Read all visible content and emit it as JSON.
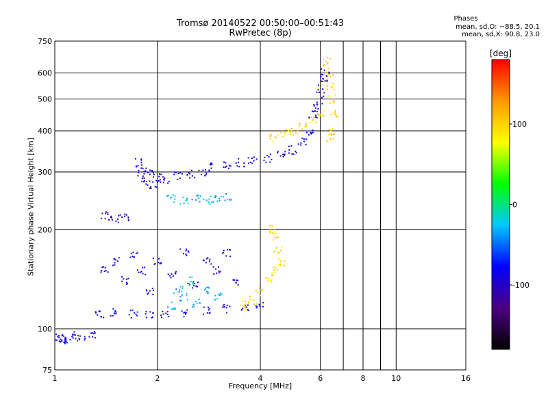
{
  "header": {
    "title_line1": "Tromsø 20140522 00:50:00–00:51:43",
    "title_line2": "RwPretec (8p)"
  },
  "stats": {
    "heading": "Phases",
    "line_o": "mean, sd,O: −88.5, 20.1",
    "line_x": "mean, sd,X:  90.8, 23.0"
  },
  "chart_data": {
    "type": "scatter",
    "xlabel": "Frequency [MHz]",
    "ylabel": "Stationary phase Virtual Height [km]",
    "xscale": "log",
    "yscale": "log",
    "xlim": [
      1,
      16
    ],
    "ylim": [
      75,
      750
    ],
    "x_ticks": [
      1,
      2,
      4,
      6,
      8,
      10,
      16
    ],
    "x_minor_gridlines": [
      7,
      9
    ],
    "y_ticks": [
      75,
      100,
      200,
      300,
      400,
      500,
      600,
      750
    ],
    "grid": true,
    "colorbar": {
      "label": "[deg]",
      "range": [
        -180,
        180
      ],
      "ticks": [
        100,
        0,
        -100
      ],
      "colormap": [
        "#000000",
        "#4b0082",
        "#0000ff",
        "#00c8ff",
        "#00ff00",
        "#ffff00",
        "#ff9900",
        "#ff0000"
      ]
    },
    "clusters": [
      {
        "name": "",
        "points": [
          [
            1.03,
            94
          ],
          [
            1.05,
            92
          ],
          [
            1.08,
            93
          ],
          [
            1.12,
            95
          ],
          [
            1.2,
            93
          ],
          [
            1.3,
            96
          ],
          [
            1.0,
            93
          ]
        ],
        "phase": -90
      },
      {
        "name": "",
        "points": [
          [
            1.35,
            110
          ],
          [
            1.5,
            112
          ],
          [
            1.7,
            111
          ],
          [
            1.9,
            110
          ],
          [
            2.1,
            111
          ],
          [
            2.4,
            112
          ],
          [
            2.8,
            113
          ],
          [
            3.2,
            115
          ],
          [
            3.6,
            117
          ],
          [
            4.0,
            119
          ]
        ],
        "phase": -85
      },
      {
        "name": "",
        "points": [
          [
            1.4,
            150
          ],
          [
            1.5,
            160
          ],
          [
            1.6,
            140
          ],
          [
            1.7,
            170
          ],
          [
            1.8,
            150
          ],
          [
            1.9,
            130
          ],
          [
            2.0,
            160
          ],
          [
            2.2,
            145
          ],
          [
            2.4,
            170
          ],
          [
            2.6,
            135
          ],
          [
            2.8,
            160
          ],
          [
            3.0,
            150
          ],
          [
            3.2,
            170
          ],
          [
            3.4,
            140
          ]
        ],
        "phase": -95
      },
      {
        "name": "",
        "points": [
          [
            2.2,
            118
          ],
          [
            2.4,
            125
          ],
          [
            2.6,
            120
          ],
          [
            2.8,
            130
          ],
          [
            3.0,
            125
          ],
          [
            2.5,
            140
          ],
          [
            2.3,
            132
          ]
        ],
        "phase": -30
      },
      {
        "name": "",
        "points": [
          [
            3.6,
            118
          ],
          [
            3.8,
            122
          ],
          [
            4.0,
            130
          ],
          [
            4.2,
            140
          ],
          [
            4.4,
            150
          ],
          [
            4.6,
            160
          ],
          [
            4.5,
            175
          ],
          [
            4.4,
            190
          ],
          [
            4.3,
            200
          ]
        ],
        "phase": 95
      },
      {
        "name": "",
        "points": [
          [
            1.75,
            320
          ],
          [
            1.8,
            300
          ],
          [
            1.85,
            280
          ],
          [
            1.9,
            300
          ],
          [
            1.95,
            275
          ],
          [
            2.0,
            290
          ],
          [
            2.1,
            285
          ],
          [
            2.3,
            290
          ],
          [
            2.5,
            295
          ],
          [
            2.7,
            300
          ]
        ],
        "phase": -90
      },
      {
        "name": "",
        "points": [
          [
            2.2,
            250
          ],
          [
            2.4,
            245
          ],
          [
            2.6,
            250
          ],
          [
            2.8,
            245
          ],
          [
            3.0,
            248
          ],
          [
            3.2,
            250
          ]
        ],
        "phase": -30
      },
      {
        "name": "",
        "points": [
          [
            2.9,
            310
          ],
          [
            3.2,
            315
          ],
          [
            3.5,
            320
          ],
          [
            3.8,
            325
          ],
          [
            4.2,
            330
          ],
          [
            4.6,
            340
          ],
          [
            5.0,
            350
          ],
          [
            5.3,
            370
          ],
          [
            5.6,
            400
          ]
        ],
        "phase": -90
      },
      {
        "name": "",
        "points": [
          [
            4.4,
            380
          ],
          [
            4.7,
            395
          ],
          [
            5.0,
            400
          ],
          [
            5.3,
            410
          ],
          [
            5.7,
            430
          ],
          [
            6.0,
            450
          ]
        ],
        "phase": 100
      },
      {
        "name": "",
        "points": [
          [
            6.3,
            650
          ],
          [
            6.35,
            600
          ],
          [
            6.4,
            550
          ],
          [
            6.5,
            500
          ],
          [
            6.6,
            450
          ],
          [
            6.55,
            400
          ],
          [
            6.45,
            380
          ]
        ],
        "phase": 100
      },
      {
        "name": "",
        "points": [
          [
            5.7,
            450
          ],
          [
            5.9,
            480
          ],
          [
            6.0,
            520
          ],
          [
            6.1,
            560
          ],
          [
            6.2,
            600
          ]
        ],
        "phase": -95
      },
      {
        "name": "",
        "points": [
          [
            1.4,
            220
          ],
          [
            1.5,
            215
          ],
          [
            1.6,
            218
          ]
        ],
        "phase": -100
      }
    ]
  }
}
